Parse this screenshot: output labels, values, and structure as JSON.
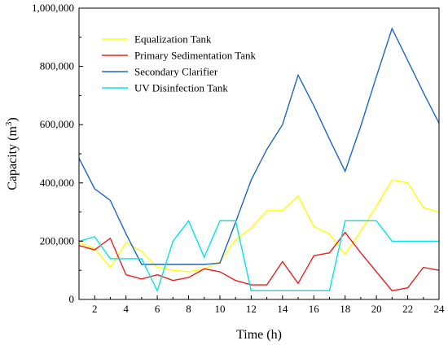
{
  "chart_data": {
    "type": "line",
    "title": "",
    "xlabel": "Time (h)",
    "ylabel_main": "Capacity (m",
    "ylabel_sup": "3",
    "ylabel_close": ")",
    "xlim": [
      1,
      24
    ],
    "ylim": [
      0,
      1000000
    ],
    "xticks": [
      2,
      4,
      6,
      8,
      10,
      12,
      14,
      16,
      18,
      20,
      22,
      24
    ],
    "yticks": [
      0,
      200000,
      400000,
      600000,
      800000,
      1000000
    ],
    "ytick_labels": [
      "0",
      "200,000",
      "400,000",
      "600,000",
      "800,000",
      "1,000,000"
    ],
    "grid": false,
    "legend_position": "top-left",
    "x": [
      1,
      2,
      3,
      4,
      5,
      6,
      7,
      8,
      9,
      10,
      11,
      12,
      13,
      14,
      15,
      16,
      17,
      18,
      19,
      20,
      21,
      22,
      23,
      24
    ],
    "series": [
      {
        "name": "Equalization Tank",
        "color": "#ffff00",
        "values": [
          195000,
          175000,
          110000,
          195000,
          165000,
          110000,
          100000,
          95000,
          105000,
          130000,
          205000,
          245000,
          305000,
          305000,
          355000,
          250000,
          225000,
          155000,
          235000,
          320000,
          410000,
          400000,
          315000,
          300000
        ]
      },
      {
        "name": "Primary Sedimentation Tank",
        "color": "#e8201f",
        "values": [
          185000,
          170000,
          210000,
          85000,
          70000,
          85000,
          65000,
          75000,
          105000,
          95000,
          65000,
          50000,
          50000,
          130000,
          55000,
          150000,
          160000,
          230000,
          160000,
          95000,
          30000,
          40000,
          110000,
          100000
        ]
      },
      {
        "name": "Secondary Clarifier",
        "color": "#1f66c6",
        "values": [
          485000,
          380000,
          340000,
          225000,
          120000,
          120000,
          120000,
          120000,
          120000,
          125000,
          265000,
          410000,
          515000,
          600000,
          770000,
          665000,
          550000,
          440000,
          595000,
          765000,
          930000,
          820000,
          710000,
          605000
        ]
      },
      {
        "name": "UV Disinfection Tank",
        "color": "#00e5e5",
        "values": [
          200000,
          215000,
          140000,
          140000,
          140000,
          30000,
          200000,
          270000,
          145000,
          270000,
          270000,
          30000,
          30000,
          30000,
          30000,
          30000,
          30000,
          270000,
          270000,
          270000,
          200000,
          200000,
          200000,
          200000
        ]
      }
    ]
  }
}
